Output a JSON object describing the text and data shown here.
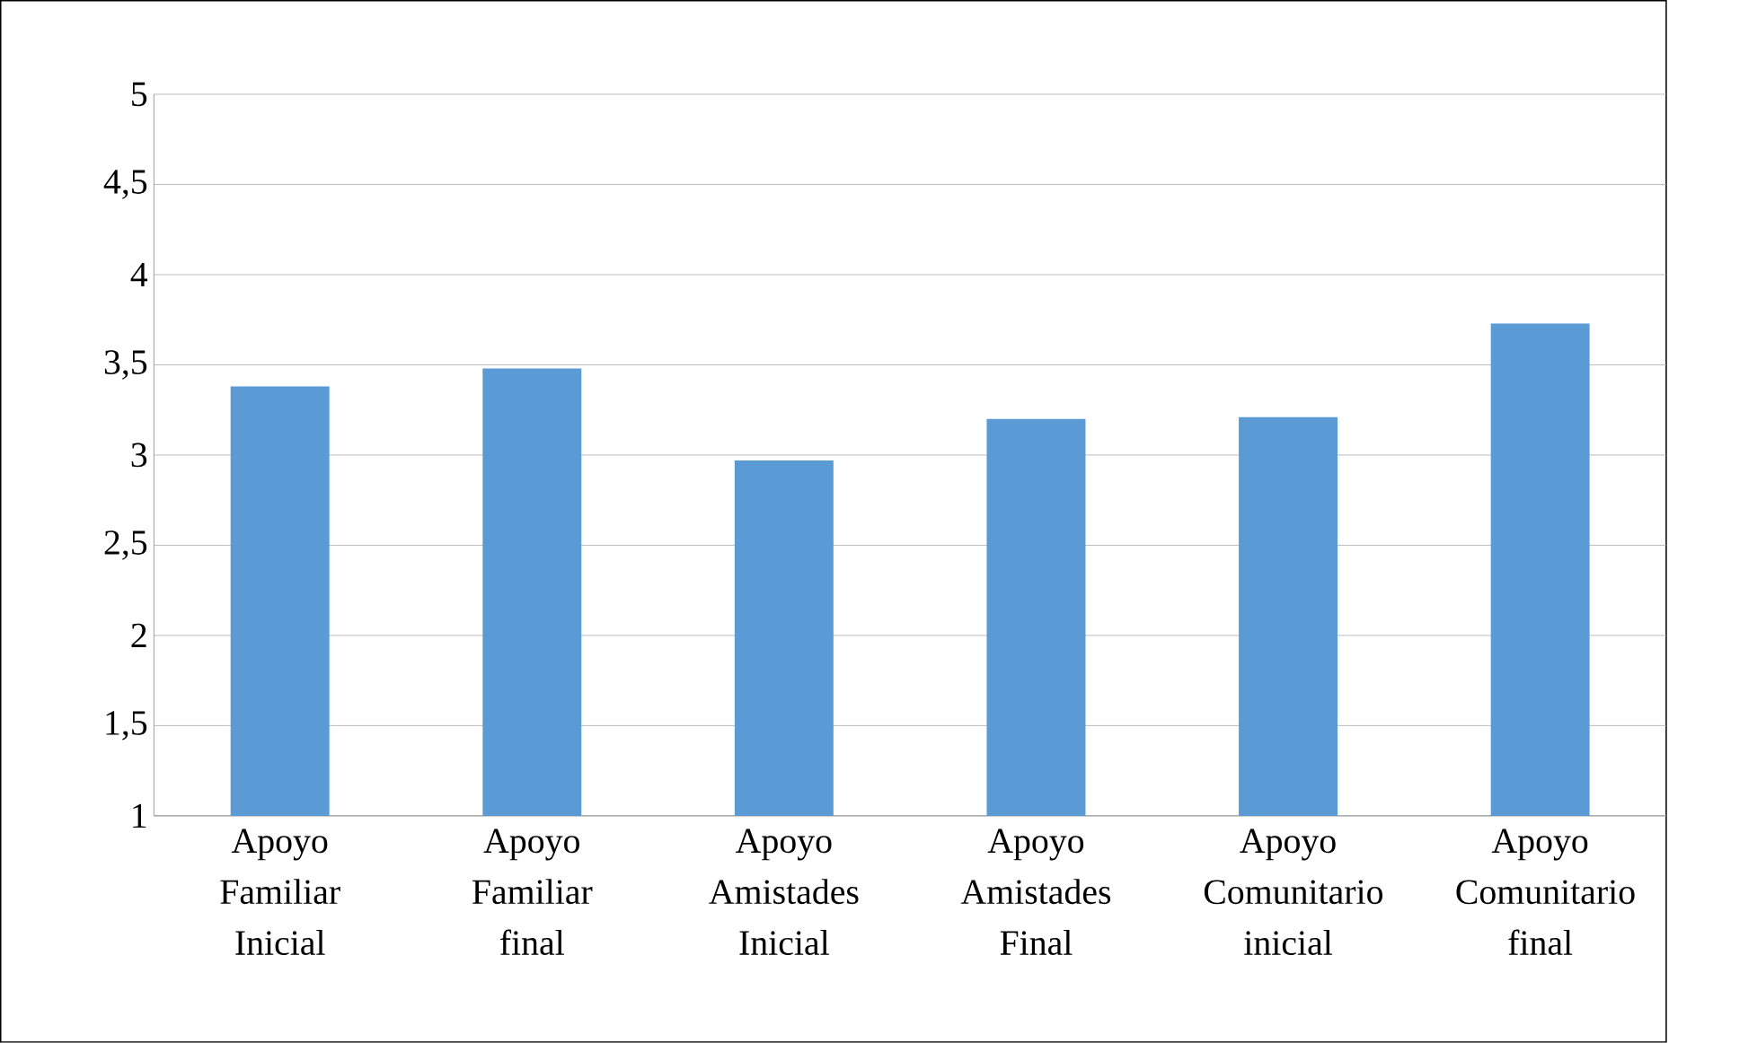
{
  "chart_data": {
    "type": "bar",
    "categories": [
      "Apoyo Familiar Inicial",
      "Apoyo Familiar final",
      "Apoyo Amistades Inicial",
      "Apoyo Amistades Final",
      "Apoyo Comunitario inicial",
      "Apoyo Comunitario final"
    ],
    "values": [
      3.38,
      3.48,
      2.97,
      3.2,
      3.21,
      3.73
    ],
    "color": "#5b9bd5",
    "ylim": [
      1,
      5
    ],
    "yticks": [
      1,
      {
        "value": 1.5,
        "label": "1,5"
      },
      2,
      {
        "value": 2.5,
        "label": "2,5"
      },
      3,
      {
        "value": 3.5,
        "label": "3,5"
      },
      4,
      {
        "value": 4.5,
        "label": "4,5"
      },
      5
    ],
    "grid": "y"
  }
}
